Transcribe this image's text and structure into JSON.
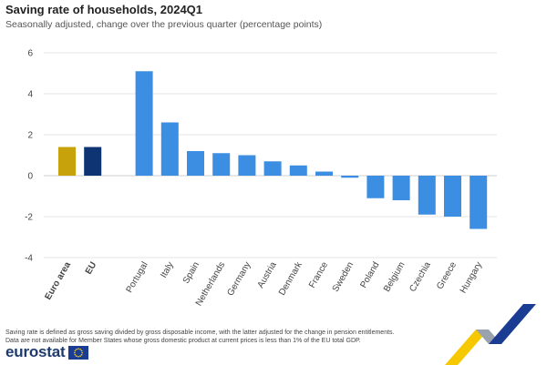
{
  "header": {
    "title": "Saving rate of households, 2024Q1",
    "subtitle": "Seasonally adjusted, change over the previous quarter (percentage points)"
  },
  "footnotes": [
    "Saving rate is defined as gross saving divided by gross disposable income, with the latter adjusted for the change in pension entitlements.",
    "Data are not available for Member States whose gross domestic product at current prices is less than 1% of the EU total GDP."
  ],
  "brand": {
    "name": "eurostat"
  },
  "colors": {
    "euro_area": "#c8a20b",
    "eu": "#0e3473",
    "country": "#3c8ee3",
    "axis_text": "#444444",
    "grid": "#e6e6e6"
  },
  "chart_data": {
    "type": "bar",
    "title": "Saving rate of households, 2024Q1",
    "subtitle": "Seasonally adjusted, change over the previous quarter (percentage points)",
    "xlabel": "",
    "ylabel": "",
    "ylim": [
      -4,
      6
    ],
    "yticks": [
      -4,
      -2,
      0,
      2,
      4,
      6
    ],
    "grid": true,
    "categories": [
      "Euro area",
      "EU",
      "Portugal",
      "Italy",
      "Spain",
      "Netherlands",
      "Germany",
      "Austria",
      "Denmark",
      "France",
      "Sweden",
      "Poland",
      "Belgium",
      "Czechia",
      "Greece",
      "Hungary"
    ],
    "values": [
      1.4,
      1.4,
      5.1,
      2.6,
      1.2,
      1.1,
      1.0,
      0.7,
      0.5,
      0.2,
      -0.1,
      -1.1,
      -1.2,
      -1.9,
      -2.0,
      -2.6
    ],
    "groups": [
      "euro_area",
      "eu",
      "country",
      "country",
      "country",
      "country",
      "country",
      "country",
      "country",
      "country",
      "country",
      "country",
      "country",
      "country",
      "country",
      "country"
    ],
    "bold_categories": [
      "Euro area",
      "EU"
    ]
  }
}
